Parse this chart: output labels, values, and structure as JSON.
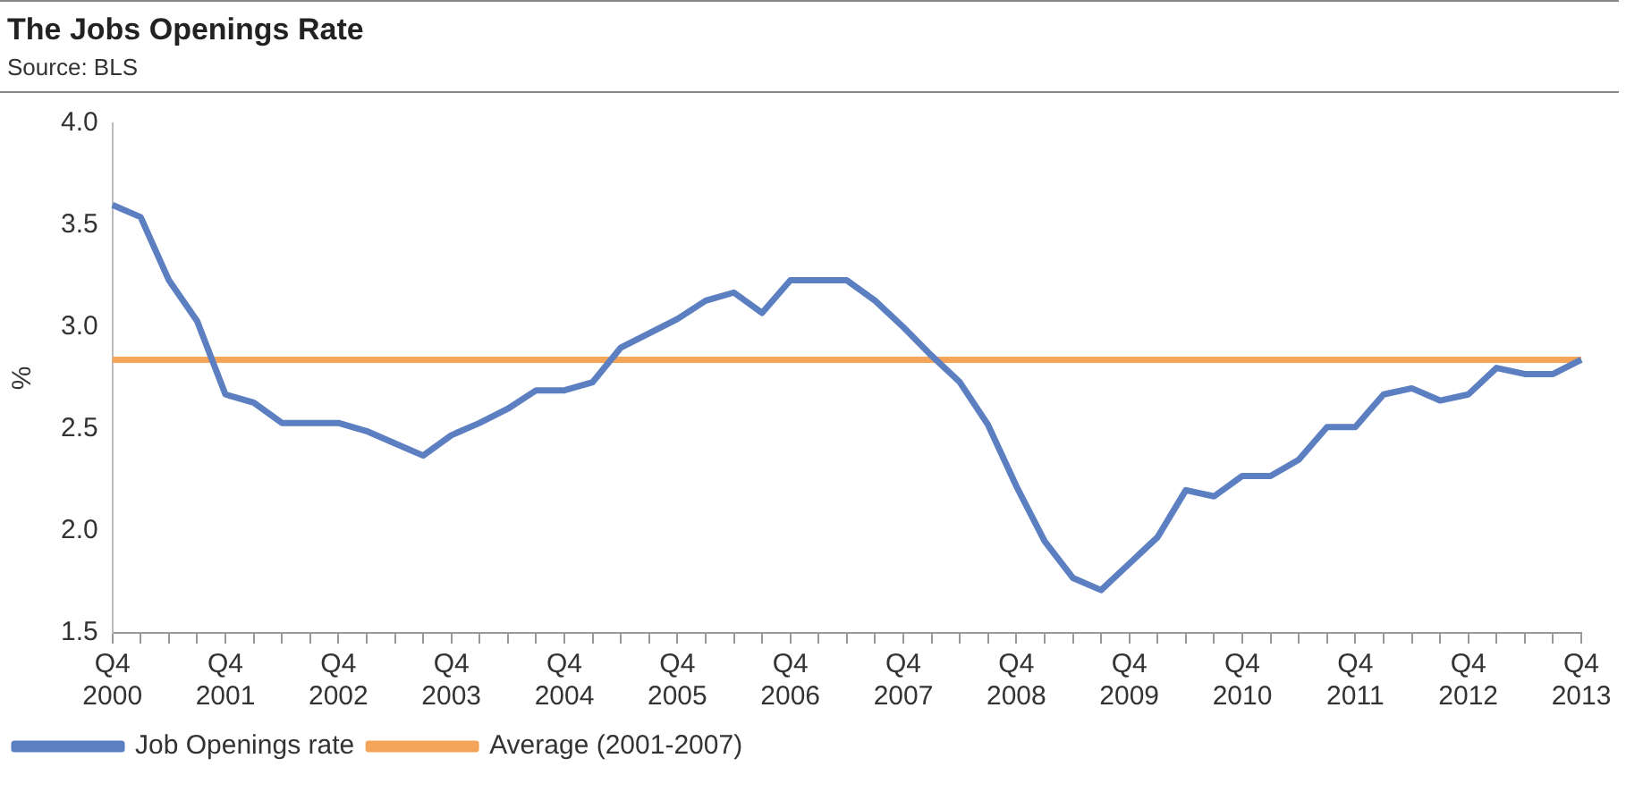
{
  "chart_data": {
    "type": "line",
    "title": "The Jobs Openings Rate",
    "subtitle": "Source: BLS",
    "ylabel": "%",
    "categories": [
      "Q4 2000",
      null,
      null,
      null,
      "Q4 2001",
      null,
      null,
      null,
      "Q4 2002",
      null,
      null,
      null,
      "Q4 2003",
      null,
      null,
      null,
      "Q4 2004",
      null,
      null,
      null,
      "Q4 2005",
      null,
      null,
      null,
      "Q4 2006",
      null,
      null,
      null,
      "Q4 2007",
      null,
      null,
      null,
      "Q4 2008",
      null,
      null,
      null,
      "Q4 2009",
      null,
      null,
      null,
      "Q4 2010",
      null,
      null,
      null,
      "Q4 2011",
      null,
      null,
      null,
      "Q4 2012",
      null,
      null,
      null,
      "Q4 2013"
    ],
    "series": [
      {
        "name": "Job Openings rate",
        "color": "#5b7fc0",
        "values": [
          3.6,
          3.54,
          3.23,
          3.03,
          2.67,
          2.63,
          2.53,
          2.53,
          2.53,
          2.49,
          2.43,
          2.37,
          2.47,
          2.53,
          2.6,
          2.69,
          2.69,
          2.73,
          2.9,
          2.97,
          3.04,
          3.13,
          3.17,
          3.07,
          3.23,
          3.23,
          3.23,
          3.13,
          3.0,
          2.86,
          2.73,
          2.52,
          2.22,
          1.95,
          1.77,
          1.71,
          1.84,
          1.97,
          2.2,
          2.17,
          2.27,
          2.27,
          2.35,
          2.51,
          2.51,
          2.67,
          2.7,
          2.64,
          2.67,
          2.8,
          2.77,
          2.77,
          2.84
        ]
      },
      {
        "name": "Average (2001-2007)",
        "color": "#f5a55a",
        "values": [
          2.84,
          2.84,
          2.84,
          2.84,
          2.84,
          2.84,
          2.84,
          2.84,
          2.84,
          2.84,
          2.84,
          2.84,
          2.84,
          2.84,
          2.84,
          2.84,
          2.84,
          2.84,
          2.84,
          2.84,
          2.84,
          2.84,
          2.84,
          2.84,
          2.84,
          2.84,
          2.84,
          2.84,
          2.84,
          2.84,
          2.84,
          2.84,
          2.84,
          2.84,
          2.84,
          2.84,
          2.84,
          2.84,
          2.84,
          2.84,
          2.84,
          2.84,
          2.84,
          2.84,
          2.84,
          2.84,
          2.84,
          2.84,
          2.84,
          2.84,
          2.84,
          2.84,
          2.84
        ]
      }
    ],
    "ylim": [
      1.5,
      4.0
    ],
    "yticks": [
      1.5,
      {
        "value": 2,
        "label": "2.0"
      },
      2.5,
      {
        "value": 3,
        "label": "3.0"
      },
      3.5,
      {
        "value": 4,
        "label": "4.0"
      }
    ],
    "grid": false,
    "legend": "bottom left",
    "marker": "none",
    "line_style": "solid"
  }
}
